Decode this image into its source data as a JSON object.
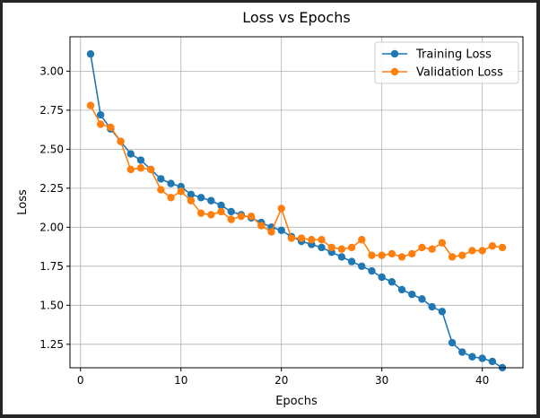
{
  "chart_data": {
    "type": "line",
    "title": "Loss vs Epochs",
    "xlabel": "Epochs",
    "ylabel": "Loss",
    "xlim": [
      -1.05,
      44.05
    ],
    "ylim": [
      1.0995,
      3.2205
    ],
    "xticks": [
      0,
      10,
      20,
      30,
      40
    ],
    "yticks": [
      1.25,
      1.5,
      1.75,
      2.0,
      2.25,
      2.5,
      2.75,
      3.0
    ],
    "ytick_labels": [
      "1.25",
      "1.50",
      "1.75",
      "2.00",
      "2.25",
      "2.50",
      "2.75",
      "3.00"
    ],
    "grid": true,
    "legend_position": "top-right",
    "x": [
      1,
      2,
      3,
      4,
      5,
      6,
      7,
      8,
      9,
      10,
      11,
      12,
      13,
      14,
      15,
      16,
      17,
      18,
      19,
      20,
      21,
      22,
      23,
      24,
      25,
      26,
      27,
      28,
      29,
      30,
      31,
      32,
      33,
      34,
      35,
      36,
      37,
      38,
      39,
      40,
      41,
      42
    ],
    "series": [
      {
        "name": "Training Loss",
        "color": "#1f77b4",
        "values": [
          3.11,
          2.72,
          2.63,
          2.55,
          2.47,
          2.43,
          2.37,
          2.31,
          2.28,
          2.26,
          2.21,
          2.19,
          2.17,
          2.14,
          2.1,
          2.08,
          2.06,
          2.03,
          2.0,
          1.98,
          1.94,
          1.91,
          1.89,
          1.87,
          1.84,
          1.81,
          1.78,
          1.75,
          1.72,
          1.68,
          1.65,
          1.6,
          1.57,
          1.54,
          1.49,
          1.46,
          1.26,
          1.2,
          1.17,
          1.16,
          1.14,
          1.1
        ]
      },
      {
        "name": "Validation Loss",
        "color": "#ff7f0e",
        "values": [
          2.78,
          2.66,
          2.64,
          2.55,
          2.37,
          2.38,
          2.37,
          2.24,
          2.19,
          2.23,
          2.17,
          2.09,
          2.08,
          2.1,
          2.05,
          2.07,
          2.07,
          2.01,
          1.97,
          2.12,
          1.93,
          1.93,
          1.92,
          1.92,
          1.87,
          1.86,
          1.87,
          1.92,
          1.82,
          1.82,
          1.83,
          1.81,
          1.83,
          1.87,
          1.86,
          1.9,
          1.81,
          1.82,
          1.85,
          1.85,
          1.88,
          1.87
        ]
      }
    ]
  }
}
